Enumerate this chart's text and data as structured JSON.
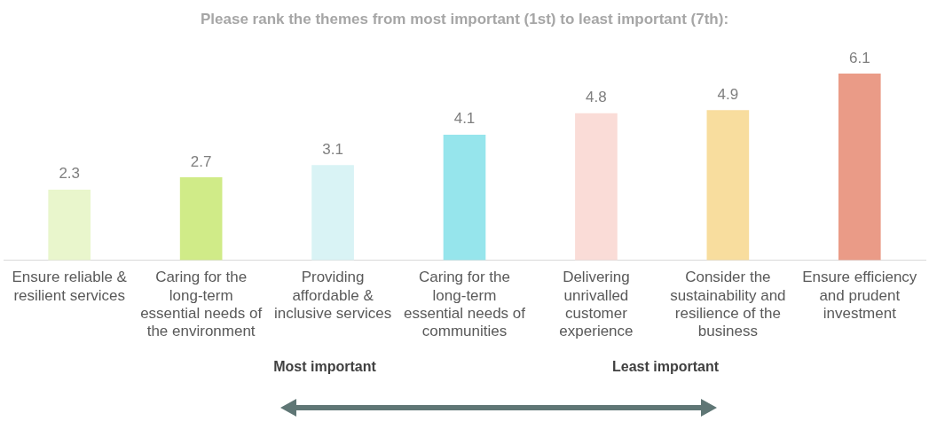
{
  "chart_data": {
    "type": "bar",
    "title": "Please rank the themes from most important (1st) to least important (7th):",
    "categories": [
      "Ensure reliable & resilient services",
      "Caring for the long-term essential needs of the environment",
      "Providing affordable & inclusive services",
      "Caring for the long-term essential needs of communities",
      "Delivering unrivalled customer experience",
      "Consider the sustainability and resilience of the business",
      "Ensure efficiency and prudent investment"
    ],
    "values": [
      2.3,
      2.7,
      3.1,
      4.1,
      4.8,
      4.9,
      6.1
    ],
    "colors": [
      "#e9f6cc",
      "#d0eb88",
      "#d9f3f5",
      "#96e5ec",
      "#fadcd7",
      "#f8dd9e",
      "#ea9b87"
    ],
    "data_labels": true,
    "grid": false,
    "legend": false,
    "annotations": [
      "Most important",
      "Least important"
    ]
  }
}
